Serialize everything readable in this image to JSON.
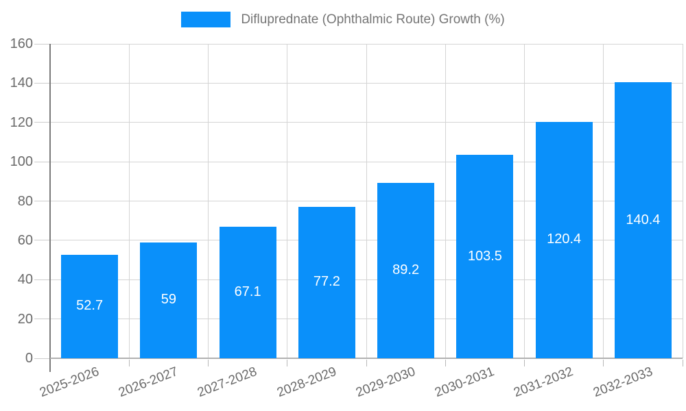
{
  "legend": {
    "label": "Difluprednate (Ophthalmic Route) Growth (%)",
    "swatch_color": "#0a90fa"
  },
  "chart_data": {
    "type": "bar",
    "title": "Difluprednate (Ophthalmic Route) Growth (%)",
    "categories": [
      "2025-2026",
      "2026-2027",
      "2027-2028",
      "2028-2029",
      "2029-2030",
      "2030-2031",
      "2031-2032",
      "2032-2033"
    ],
    "values": [
      52.7,
      59,
      67.1,
      77.2,
      89.2,
      103.5,
      120.4,
      140.4
    ],
    "value_labels": [
      "52.7",
      "59",
      "67.1",
      "77.2",
      "89.2",
      "103.5",
      "120.4",
      "140.4"
    ],
    "xlabel": "",
    "ylabel": "",
    "ylim": [
      0,
      160
    ],
    "yticks": [
      0,
      20,
      40,
      60,
      80,
      100,
      120,
      140,
      160
    ],
    "grid": true,
    "legend_position": "top-center",
    "bar_color": "#0a90fa",
    "value_label_color": "#ffffff",
    "value_label_position": "inside-center",
    "x_tick_rotation_deg": -21
  },
  "colors": {
    "bar": "#0a90fa",
    "gridline": "#d4d4d4",
    "y_axis_line": "#7a7a7a",
    "x_axis_line": "#b0b0b0",
    "tick_text": "#696969",
    "legend_text": "#757575",
    "background": "#ffffff"
  }
}
